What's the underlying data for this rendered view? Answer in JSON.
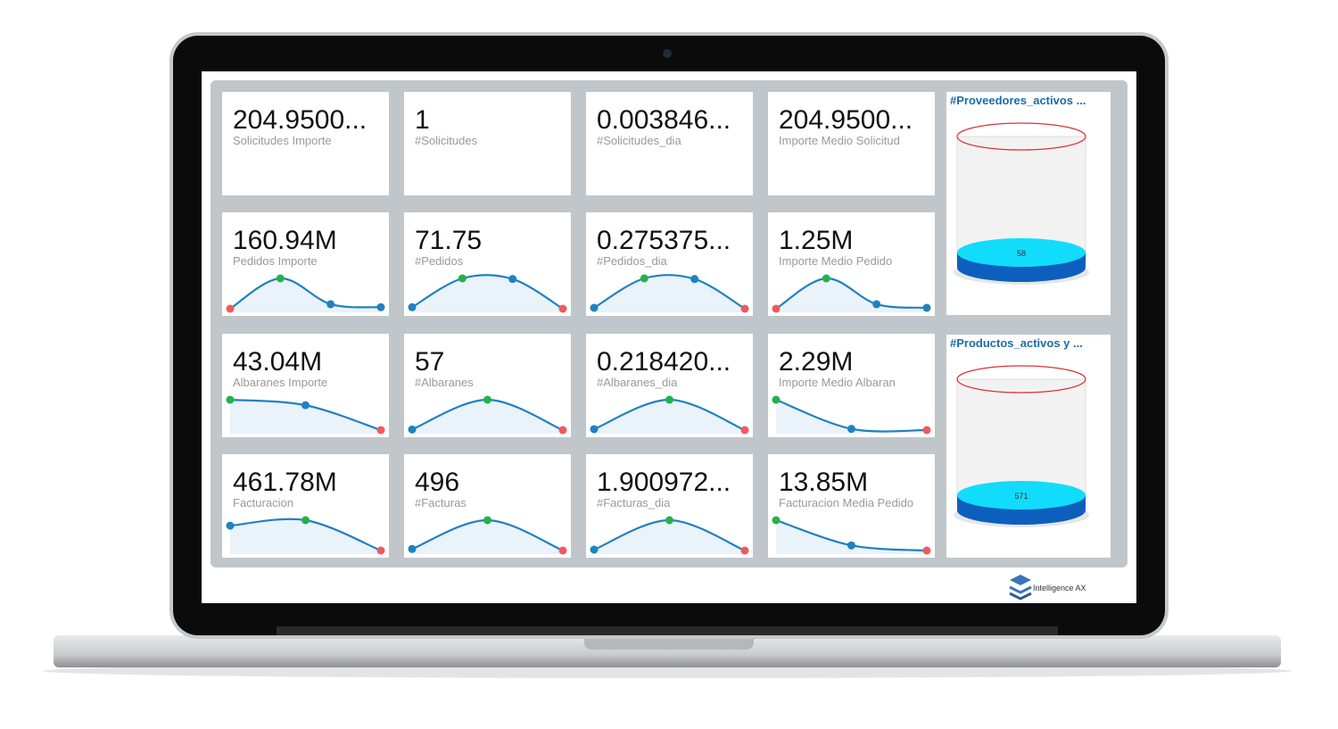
{
  "tiles": [
    {
      "value": "204.9500...",
      "label": "Solicitudes Importe"
    },
    {
      "value": "1",
      "label": "#Solicitudes"
    },
    {
      "value": "0.003846...",
      "label": "#Solicitudes_dia"
    },
    {
      "value": "204.9500...",
      "label": "Importe Medio Solicitud"
    },
    {
      "value": "160.94M",
      "label": "Pedidos Importe",
      "trend": [
        0,
        100,
        15,
        5
      ]
    },
    {
      "value": "71.75",
      "label": "#Pedidos",
      "trend": [
        5,
        100,
        98,
        0
      ]
    },
    {
      "value": "0.275375...",
      "label": "#Pedidos_dia",
      "trend": [
        3,
        100,
        98,
        0
      ]
    },
    {
      "value": "1.25M",
      "label": "Importe Medio Pedido",
      "trend": [
        0,
        100,
        15,
        3
      ]
    },
    {
      "value": "43.04M",
      "label": "Albaranes Importe",
      "trend": [
        100,
        82,
        0
      ]
    },
    {
      "value": "57",
      "label": "#Albaranes",
      "trend": [
        2,
        100,
        0
      ]
    },
    {
      "value": "0.218420...",
      "label": "#Albaranes_dia",
      "trend": [
        3,
        100,
        0
      ]
    },
    {
      "value": "2.29M",
      "label": "Importe Medio Albaran",
      "trend": [
        100,
        4,
        0
      ]
    },
    {
      "value": "461.78M",
      "label": "Facturacion",
      "trend": [
        82,
        100,
        0
      ]
    },
    {
      "value": "496",
      "label": "#Facturas",
      "trend": [
        5,
        100,
        0
      ]
    },
    {
      "value": "1.900972...",
      "label": "#Facturas_dia",
      "trend": [
        3,
        100,
        0
      ]
    },
    {
      "value": "13.85M",
      "label": "Facturacion Media Pedido",
      "trend": [
        100,
        17,
        0
      ]
    }
  ],
  "gauges": [
    {
      "title": "#Proveedores_activos ...",
      "value": "58"
    },
    {
      "title": "#Productos_activos y ...",
      "value": "571"
    }
  ],
  "logo": "Intelligence AX"
}
